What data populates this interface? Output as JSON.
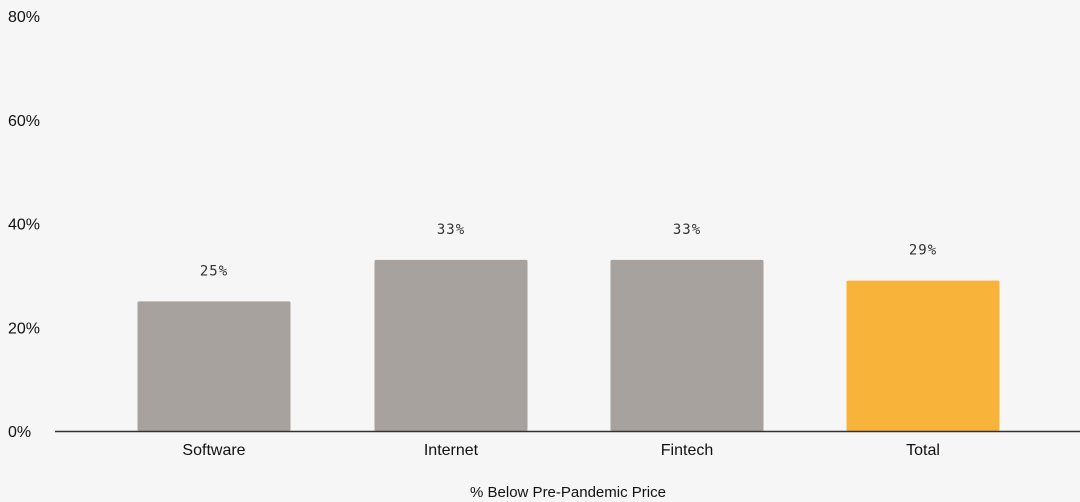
{
  "chart_data": {
    "type": "bar",
    "categories": [
      "Software",
      "Internet",
      "Fintech",
      "Total"
    ],
    "values": [
      25,
      33,
      33,
      29
    ],
    "data_labels": [
      "25%",
      "33%",
      "33%",
      "29%"
    ],
    "xlabel": "% Below Pre-Pandemic Price",
    "ylabel": "",
    "ylim": [
      0,
      80
    ],
    "yticks": [
      0,
      20,
      40,
      60,
      80
    ],
    "ytick_labels": [
      "0%",
      "20%",
      "40%",
      "60%",
      "80%"
    ],
    "grid": false,
    "colors": {
      "default_bar": "#a7a29d",
      "highlight_bar": "#f8b33b",
      "axis": "#333333"
    },
    "highlight_category": "Total"
  }
}
